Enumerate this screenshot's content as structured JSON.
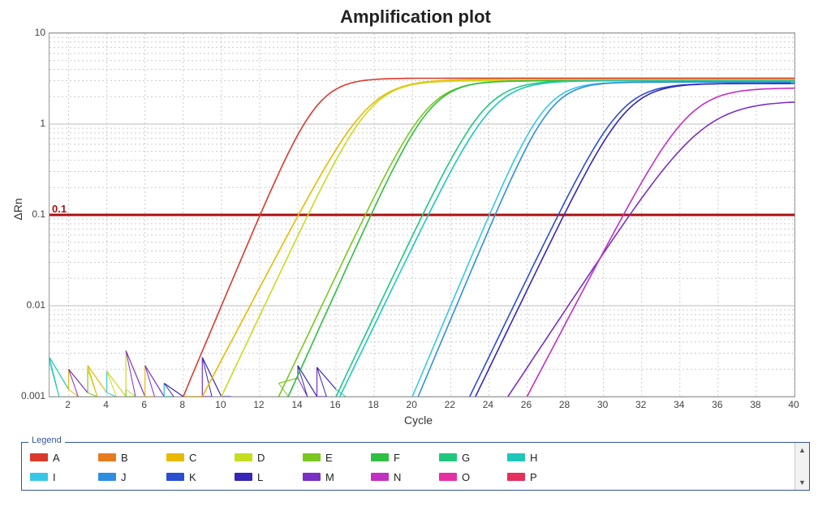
{
  "title": "Amplification plot",
  "chart": {
    "type": "line",
    "xlabel": "Cycle",
    "ylabel": "ΔRn",
    "xlim": [
      1,
      40
    ],
    "ymin": 0.001,
    "ymax": 10,
    "yscale": "log",
    "xticks": [
      2,
      4,
      6,
      8,
      10,
      12,
      14,
      16,
      18,
      20,
      22,
      24,
      26,
      28,
      30,
      32,
      34,
      36,
      38,
      40
    ],
    "yticks": [
      0.001,
      0.01,
      0.1,
      1,
      10
    ],
    "ytick_labels": [
      "0.001",
      "0.01",
      "0.1",
      "1",
      "10"
    ],
    "log_subdivs": [
      2,
      3,
      4,
      5,
      6,
      7,
      8,
      9
    ],
    "background_color": "#ffffff",
    "grid_color": "#cccccc",
    "border_color": "#999999",
    "tick_fontsize": 12,
    "label_fontsize": 14,
    "title_fontsize": 22,
    "threshold": {
      "value": 0.1,
      "label": "0.1",
      "color": "#aa1111",
      "width": 3
    },
    "line_width": 1.6,
    "series_colors": {
      "A": "#d93a2b",
      "B": "#e77b1f",
      "C": "#e9b900",
      "D": "#c7dc1f",
      "E": "#7bc71f",
      "F": "#2fbf42",
      "G": "#1fc77c",
      "H": "#1fc7b8",
      "I": "#36c6e6",
      "J": "#2e8fe0",
      "K": "#2a4ecf",
      "L": "#3726b5",
      "M": "#7b2fc4",
      "N": "#c22fc4",
      "O": "#e62fa0",
      "P": "#e62f5a"
    },
    "noise_points": [
      {
        "x": 1,
        "y": 0.0024,
        "c": "I"
      },
      {
        "x": 1,
        "y": 0.0027,
        "c": "H"
      },
      {
        "x": 2,
        "y": 0.002,
        "c": "M"
      },
      {
        "x": 2,
        "y": 0.0012,
        "c": "C"
      },
      {
        "x": 3,
        "y": 0.002,
        "c": "D"
      },
      {
        "x": 3,
        "y": 0.0011,
        "c": "E"
      },
      {
        "x": 3,
        "y": 0.0022,
        "c": "C"
      },
      {
        "x": 4,
        "y": 0.0011,
        "c": "I"
      },
      {
        "x": 4,
        "y": 0.0019,
        "c": "D"
      },
      {
        "x": 5,
        "y": 0.001,
        "c": "E"
      },
      {
        "x": 5,
        "y": 0.0032,
        "c": "M"
      },
      {
        "x": 5,
        "y": 0.0012,
        "c": "D"
      },
      {
        "x": 6,
        "y": 0.0022,
        "c": "M"
      },
      {
        "x": 6,
        "y": 0.001,
        "c": "C"
      },
      {
        "x": 7,
        "y": 0.0014,
        "c": "L"
      },
      {
        "x": 7,
        "y": 0.001,
        "c": "H"
      },
      {
        "x": 8,
        "y": 0.001,
        "c": "C"
      },
      {
        "x": 9,
        "y": 0.0027,
        "c": "L"
      },
      {
        "x": 9,
        "y": 0.001,
        "c": "M"
      },
      {
        "x": 10,
        "y": 0.001,
        "c": "L"
      },
      {
        "x": 13,
        "y": 0.0014,
        "c": "E"
      },
      {
        "x": 14,
        "y": 0.0022,
        "c": "L"
      },
      {
        "x": 14,
        "y": 0.0016,
        "c": "M"
      },
      {
        "x": 15,
        "y": 0.0021,
        "c": "L"
      },
      {
        "x": 15,
        "y": 0.001,
        "c": "M"
      },
      {
        "x": 16,
        "y": 0.0012,
        "c": "H"
      }
    ],
    "curves": [
      {
        "label": "A",
        "start": 8,
        "ct": 12.0,
        "plateau": 3.2
      },
      {
        "label": "C",
        "start": 9,
        "ct": 14.0,
        "plateau": 3.1
      },
      {
        "label": "D",
        "start": 10,
        "ct": 14.5,
        "plateau": 3.0
      },
      {
        "label": "E",
        "start": 13,
        "ct": 17.5,
        "plateau": 3.0
      },
      {
        "label": "F",
        "start": 13.5,
        "ct": 17.8,
        "plateau": 3.0
      },
      {
        "label": "G",
        "start": 16,
        "ct": 20.5,
        "plateau": 3.0
      },
      {
        "label": "H",
        "start": 16.2,
        "ct": 20.8,
        "plateau": 3.0
      },
      {
        "label": "I",
        "start": 20,
        "ct": 24.0,
        "plateau": 2.9
      },
      {
        "label": "J",
        "start": 20.3,
        "ct": 24.3,
        "plateau": 2.9
      },
      {
        "label": "K",
        "start": 23,
        "ct": 27.6,
        "plateau": 2.8
      },
      {
        "label": "L",
        "start": 23.3,
        "ct": 27.9,
        "plateau": 2.8
      },
      {
        "label": "M",
        "start": 25,
        "ct": 31.3,
        "plateau": 1.8
      },
      {
        "label": "N",
        "start": 26,
        "ct": 31.0,
        "plateau": 2.5
      }
    ]
  },
  "legend": {
    "title": "Legend",
    "items": [
      "A",
      "B",
      "C",
      "D",
      "E",
      "F",
      "G",
      "H",
      "I",
      "J",
      "K",
      "L",
      "M",
      "N",
      "O",
      "P"
    ],
    "border_color": "#335599"
  }
}
